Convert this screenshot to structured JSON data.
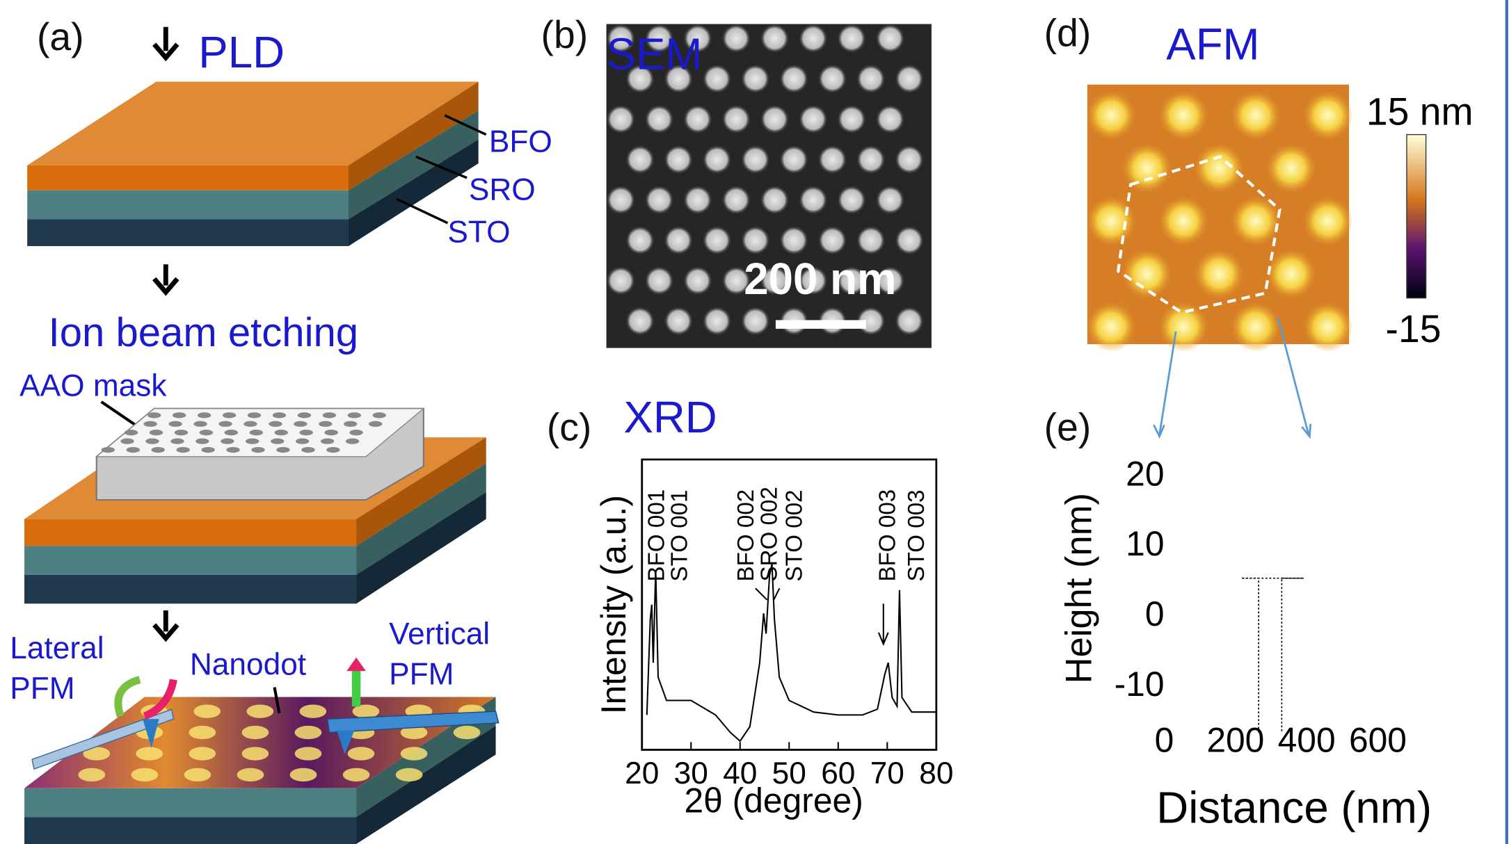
{
  "panel_a": {
    "label": "(a)",
    "pld": "PLD",
    "layers": [
      "BFO",
      "SRO",
      "STO"
    ],
    "etching": "Ion beam etching",
    "mask": "AAO mask",
    "lateral": [
      "Lateral",
      "PFM"
    ],
    "nanodot": "Nanodot",
    "vertical": [
      "Vertical",
      "PFM"
    ]
  },
  "panel_b": {
    "label": "(b)",
    "title": "SEM",
    "scale_bar": "200 nm"
  },
  "panel_c": {
    "label": "(c)",
    "title": "XRD",
    "chart": {
      "type": "line",
      "x_label": "2θ (degree)",
      "y_label": "Intensity (a.u.)",
      "xlim": [
        20,
        80
      ],
      "xticks": [
        20,
        30,
        40,
        50,
        60,
        70,
        80
      ],
      "ylim": [
        0,
        100
      ],
      "x": [
        21,
        21.7,
        22,
        22.3,
        22.8,
        23.3,
        25,
        30,
        35,
        38,
        40,
        42,
        44,
        44.8,
        45.3,
        46,
        46.5,
        47,
        48,
        50,
        55,
        60,
        65,
        68,
        69.5,
        70.2,
        71,
        72,
        72.5,
        73,
        75,
        80
      ],
      "values": [
        12,
        45,
        50,
        30,
        62,
        25,
        17,
        17,
        12,
        6,
        3,
        8,
        30,
        47,
        40,
        60,
        64,
        45,
        25,
        17,
        13,
        12,
        12,
        14,
        26,
        30,
        18,
        15,
        55,
        18,
        13,
        13
      ],
      "peak_labels": [
        "BFO 001",
        "STO 001",
        "BFO 002",
        "SRO 002",
        "STO 002",
        "BFO 003",
        "STO 003"
      ]
    }
  },
  "panel_d": {
    "label": "(d)",
    "title": "AFM",
    "colorbar_max": "15 nm",
    "colorbar_min": "-15"
  },
  "panel_e": {
    "label": "(e)",
    "chart": {
      "type": "line",
      "x_label": "Distance (nm)",
      "y_label": "Height (nm)",
      "xlim": [
        0,
        600
      ],
      "xticks": [
        0,
        200,
        400,
        600
      ],
      "ylim": [
        -18,
        22
      ],
      "yticks": [
        -10,
        0,
        10,
        20
      ],
      "x": [
        265,
        265,
        216,
        392,
        330,
        330
      ],
      "values": [
        -17,
        5,
        5,
        5,
        5,
        -17
      ]
    }
  }
}
